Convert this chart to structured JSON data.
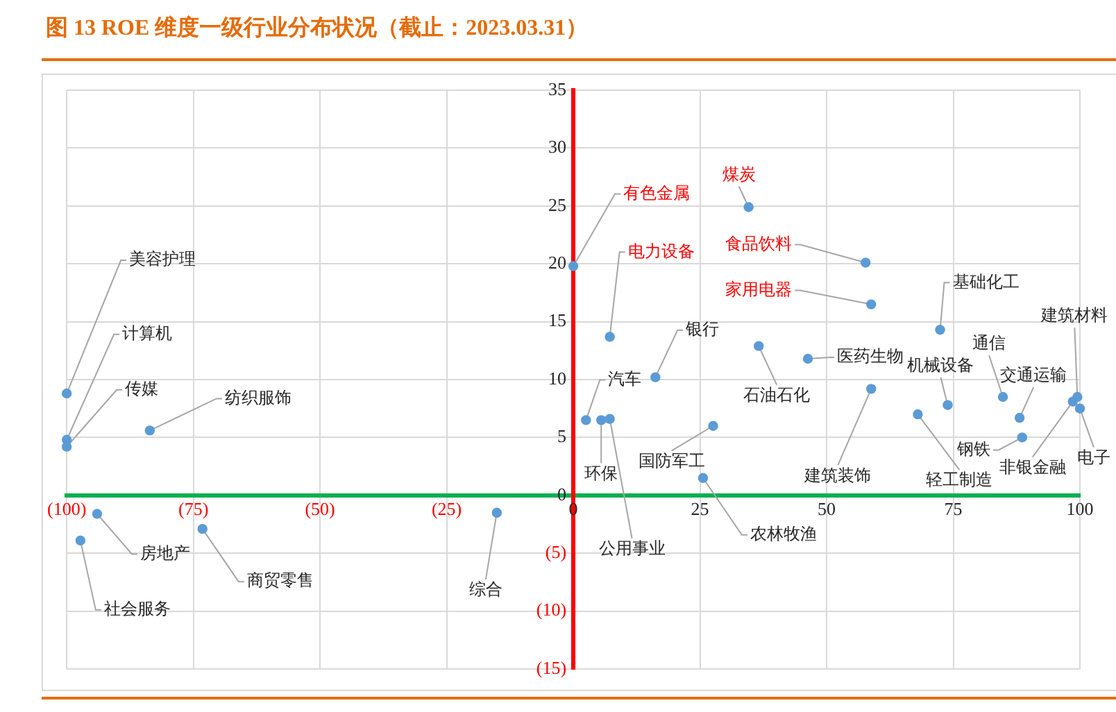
{
  "chart_data": {
    "type": "scatter",
    "title": "图 13 ROE 维度一级行业分布状况（截止：2023.03.31）",
    "series": [
      {
        "color": "#5b9bd5",
        "x": [
          -100,
          -100,
          -100,
          -83.6,
          -94,
          -97.3,
          -73.2,
          -15.1,
          0,
          34.6,
          57.7,
          58.8,
          7.2,
          72.4,
          16.2,
          36.6,
          46.3,
          2.5,
          5.5,
          7.2,
          27.6,
          25.6,
          58.8,
          73.9,
          68,
          84.8,
          88.1,
          88.6,
          98.6,
          99.5,
          100
        ],
        "values": [
          8.8,
          4.8,
          4.2,
          5.6,
          -1.6,
          -3.9,
          -2.9,
          -1.5,
          19.8,
          24.9,
          20.1,
          16.5,
          13.7,
          14.3,
          10.2,
          12.9,
          11.8,
          6.5,
          6.5,
          6.6,
          6.0,
          1.5,
          9.2,
          7.8,
          7.0,
          8.5,
          6.7,
          5.0,
          8.1,
          8.5,
          7.5
        ]
      }
    ],
    "xlim": [
      -100,
      100
    ],
    "xticks": [
      {
        "value": -100,
        "label": "(100)"
      },
      {
        "value": -75,
        "label": "(75)"
      },
      {
        "value": -50,
        "label": "(50)"
      },
      {
        "value": -25,
        "label": "(25)"
      },
      0,
      25,
      50,
      75,
      100
    ],
    "ylim": [
      -15,
      35
    ],
    "yticks": [
      {
        "value": -15,
        "label": "(15)"
      },
      {
        "value": -10,
        "label": "(10)"
      },
      {
        "value": -5,
        "label": "(5)"
      },
      0,
      5,
      10,
      15,
      20,
      25,
      30,
      35
    ],
    "grid": true,
    "marker": "circle",
    "annotations": [
      {
        "text": "美容护理",
        "x": -100,
        "y": 8.8
      },
      {
        "text": "计算机",
        "x": -100,
        "y": 4.8
      },
      {
        "text": "传媒",
        "x": -100,
        "y": 4.2
      },
      {
        "text": "纺织服饰",
        "x": -83.6,
        "y": 5.6
      },
      {
        "text": "房地产",
        "x": -94,
        "y": -1.6
      },
      {
        "text": "社会服务",
        "x": -97.3,
        "y": -3.9
      },
      {
        "text": "商贸零售",
        "x": -73.2,
        "y": -2.9
      },
      {
        "text": "综合",
        "x": -15.1,
        "y": -1.5
      },
      {
        "text": "有色金属",
        "x": 0,
        "y": 19.8
      },
      {
        "text": "煤炭",
        "x": 34.6,
        "y": 24.9
      },
      {
        "text": "食品饮料",
        "x": 57.7,
        "y": 20.1
      },
      {
        "text": "家用电器",
        "x": 58.8,
        "y": 16.5
      },
      {
        "text": "电力设备",
        "x": 7.2,
        "y": 13.7
      },
      {
        "text": "基础化工",
        "x": 72.4,
        "y": 14.3
      },
      {
        "text": "银行",
        "x": 16.2,
        "y": 10.2
      },
      {
        "text": "石油石化",
        "x": 36.6,
        "y": 12.9
      },
      {
        "text": "医药生物",
        "x": 46.3,
        "y": 11.8
      },
      {
        "text": "汽车",
        "x": 2.5,
        "y": 6.5
      },
      {
        "text": "环保",
        "x": 5.5,
        "y": 6.5
      },
      {
        "text": "公用事业",
        "x": 7.2,
        "y": 6.6
      },
      {
        "text": "国防军工",
        "x": 27.6,
        "y": 6.0
      },
      {
        "text": "农林牧渔",
        "x": 25.6,
        "y": 1.5
      },
      {
        "text": "建筑装饰",
        "x": 58.8,
        "y": 9.2
      },
      {
        "text": "机械设备",
        "x": 73.9,
        "y": 7.8
      },
      {
        "text": "轻工制造",
        "x": 68,
        "y": 7.0
      },
      {
        "text": "通信",
        "x": 84.8,
        "y": 8.5
      },
      {
        "text": "交通运输",
        "x": 88.1,
        "y": 6.7
      },
      {
        "text": "钢铁",
        "x": 88.6,
        "y": 5.0
      },
      {
        "text": "非银金融",
        "x": 98.6,
        "y": 8.1
      },
      {
        "text": "建筑材料",
        "x": 99.5,
        "y": 8.5
      },
      {
        "text": "电子",
        "x": 100,
        "y": 7.5
      }
    ]
  }
}
